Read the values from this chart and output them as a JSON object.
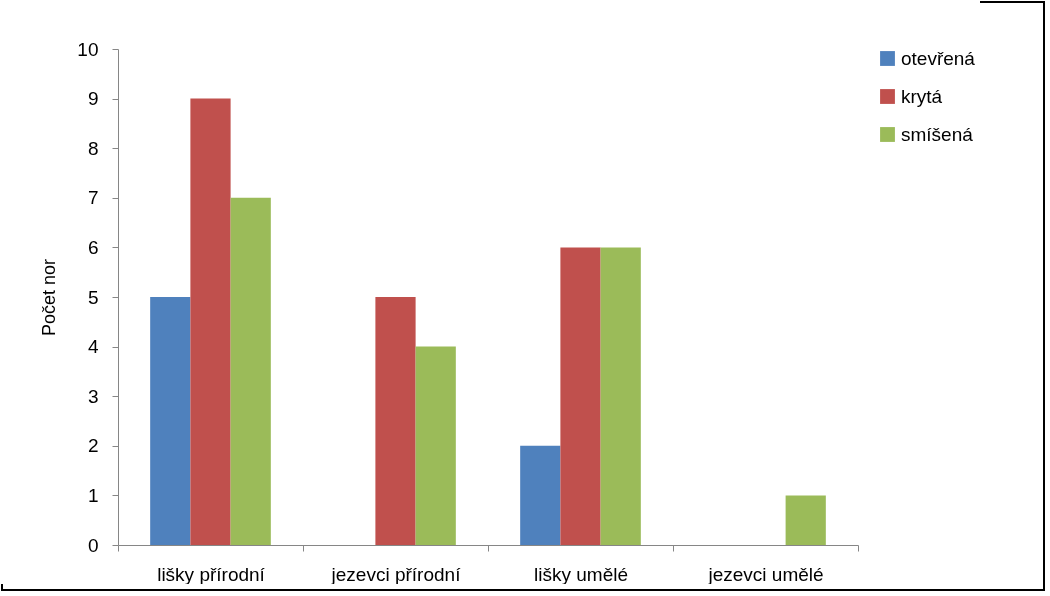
{
  "chart_data": {
    "type": "bar",
    "ylabel": "Počet nor",
    "categories": [
      "lišky přírodní",
      "jezevci přírodní",
      "lišky umělé",
      "jezevci umělé"
    ],
    "series": [
      {
        "name": "otevřená",
        "color": "#4f81bd",
        "values": [
          5,
          0,
          2,
          0
        ]
      },
      {
        "name": "krytá",
        "color": "#c0504d",
        "values": [
          9,
          5,
          6,
          0
        ]
      },
      {
        "name": "smíšená",
        "color": "#9bbb59",
        "values": [
          7,
          4,
          6,
          1
        ]
      }
    ],
    "ylim": [
      0,
      10
    ],
    "yticks": [
      0,
      1,
      2,
      3,
      4,
      5,
      6,
      7,
      8,
      9,
      10
    ],
    "grid": false,
    "legend": "right"
  }
}
